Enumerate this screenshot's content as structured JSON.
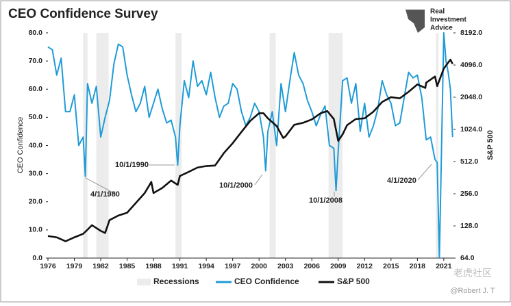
{
  "chart_data": {
    "type": "line",
    "title": "CEO Confidence Survey",
    "logo_text": [
      "Real",
      "Investment",
      "Advice"
    ],
    "watermark": [
      "老虎社区",
      "@Robert J. T"
    ],
    "y_label": "CEO Confidence",
    "y2_label": "S&P 500",
    "xlim": [
      1976,
      2022.1
    ],
    "xticks": [
      1976,
      1979,
      1982,
      1985,
      1988,
      1991,
      1994,
      1997,
      2000,
      2003,
      2006,
      2009,
      2012,
      2015,
      2018,
      2021
    ],
    "ylim": [
      0,
      80
    ],
    "yticks": [
      {
        "value": 0,
        "label": "0.0"
      },
      {
        "value": 10,
        "label": "10.0"
      },
      {
        "value": 20,
        "label": "20.0"
      },
      {
        "value": 30,
        "label": "30.0"
      },
      {
        "value": 40,
        "label": "40.0"
      },
      {
        "value": 50,
        "label": "50.0"
      },
      {
        "value": 60,
        "label": "60.0"
      },
      {
        "value": 70,
        "label": "70.0"
      },
      {
        "value": 80,
        "label": "80.0"
      }
    ],
    "y2lim": [
      64,
      8192
    ],
    "y2log": true,
    "y2ticks": [
      {
        "value": 64,
        "label": "64.0"
      },
      {
        "value": 128,
        "label": "128.0"
      },
      {
        "value": 256,
        "label": "256.0"
      },
      {
        "value": 512,
        "label": "512.0"
      },
      {
        "value": 1024,
        "label": "1024.0"
      },
      {
        "value": 2048,
        "label": "2048.0"
      },
      {
        "value": 4096,
        "label": "4096.0"
      },
      {
        "value": 8192,
        "label": "8192.0"
      }
    ],
    "recession_name": "Recessions",
    "recession_color": "#ececec",
    "recessions": [
      [
        1980.0,
        1980.5
      ],
      [
        1981.5,
        1982.9
      ],
      [
        1990.5,
        1991.2
      ],
      [
        2001.2,
        2001.9
      ],
      [
        2007.9,
        2009.5
      ],
      [
        2020.1,
        2020.4
      ]
    ],
    "series": [
      {
        "name": "CEO Confidence",
        "color": "#1f9bd7",
        "x": [
          1976,
          1976.5,
          1977,
          1977.5,
          1978,
          1978.5,
          1979,
          1979.5,
          1980,
          1980.25,
          1980.5,
          1981,
          1981.5,
          1982,
          1982.5,
          1983,
          1983.5,
          1984,
          1984.5,
          1985,
          1985.5,
          1986,
          1986.5,
          1987,
          1987.5,
          1988,
          1988.5,
          1989,
          1989.5,
          1990,
          1990.5,
          1990.75,
          1991,
          1991.5,
          1992,
          1992.5,
          1993,
          1993.5,
          1994,
          1994.5,
          1995,
          1995.5,
          1996,
          1996.5,
          1997,
          1997.5,
          1998,
          1998.5,
          1999,
          1999.5,
          2000,
          2000.5,
          2000.75,
          2001,
          2001.5,
          2002,
          2002.5,
          2003,
          2003.5,
          2004,
          2004.5,
          2005,
          2005.5,
          2006,
          2006.5,
          2007,
          2007.5,
          2008,
          2008.5,
          2008.75,
          2009,
          2009.5,
          2010,
          2010.5,
          2011,
          2011.5,
          2012,
          2012.5,
          2013,
          2013.5,
          2014,
          2014.5,
          2015,
          2015.5,
          2016,
          2016.5,
          2017,
          2017.5,
          2018,
          2018.5,
          2019,
          2019.5,
          2020,
          2020.25,
          2020.5,
          2021,
          2021.25,
          2021.5,
          2021.75,
          2022
        ],
        "values": [
          75,
          74,
          65,
          71,
          52,
          52,
          58,
          40,
          43,
          29,
          62,
          55,
          61,
          43,
          50,
          56,
          69,
          76,
          75,
          65,
          58,
          52,
          55,
          61,
          50,
          55,
          60,
          53,
          48,
          49,
          43,
          33,
          47,
          63,
          57,
          70,
          61,
          63,
          58,
          66,
          57,
          50,
          54,
          55,
          62,
          60,
          52,
          47,
          50,
          55,
          52,
          43,
          31,
          45,
          52,
          40,
          62,
          52,
          63,
          73,
          65,
          62,
          56,
          52,
          47,
          51,
          54,
          40,
          39,
          24,
          38,
          63,
          64,
          55,
          62,
          45,
          55,
          43,
          47,
          53,
          63,
          58,
          55,
          47,
          48,
          57,
          66,
          64,
          65,
          57,
          42,
          43,
          35,
          34,
          0,
          80,
          70,
          66,
          60,
          43
        ]
      },
      {
        "name": "S&P 500",
        "color": "#111111",
        "axis": "y2",
        "x": [
          1976,
          1977,
          1978,
          1979,
          1980,
          1980.5,
          1981,
          1982,
          1982.5,
          1983,
          1984,
          1985,
          1986,
          1987,
          1987.75,
          1988,
          1989,
          1990,
          1990.75,
          1991,
          1992,
          1993,
          1994,
          1995,
          1996,
          1997,
          1998,
          1999,
          2000,
          2000.5,
          2001,
          2002,
          2002.75,
          2003,
          2004,
          2005,
          2006,
          2007,
          2007.75,
          2008.5,
          2009,
          2009.5,
          2010,
          2011,
          2012,
          2013,
          2014,
          2015,
          2016,
          2017,
          2018,
          2018.9,
          2019,
          2020,
          2020.25,
          2021,
          2021.75,
          2022
        ],
        "values": [
          103,
          100,
          92,
          100,
          108,
          118,
          130,
          115,
          110,
          145,
          160,
          170,
          210,
          260,
          330,
          260,
          290,
          340,
          310,
          375,
          410,
          450,
          465,
          470,
          615,
          760,
          970,
          1230,
          1450,
          1450,
          1300,
          1100,
          850,
          880,
          1130,
          1180,
          1270,
          1450,
          1520,
          1280,
          800,
          920,
          1120,
          1280,
          1300,
          1500,
          1850,
          2050,
          2000,
          2300,
          2700,
          2500,
          2800,
          3200,
          2600,
          3800,
          4600,
          4200
        ]
      }
    ],
    "annotations": [
      "4/1/1980",
      "10/1/1990",
      "10/1/2000",
      "10/1/2008",
      "4/1/2020"
    ]
  }
}
